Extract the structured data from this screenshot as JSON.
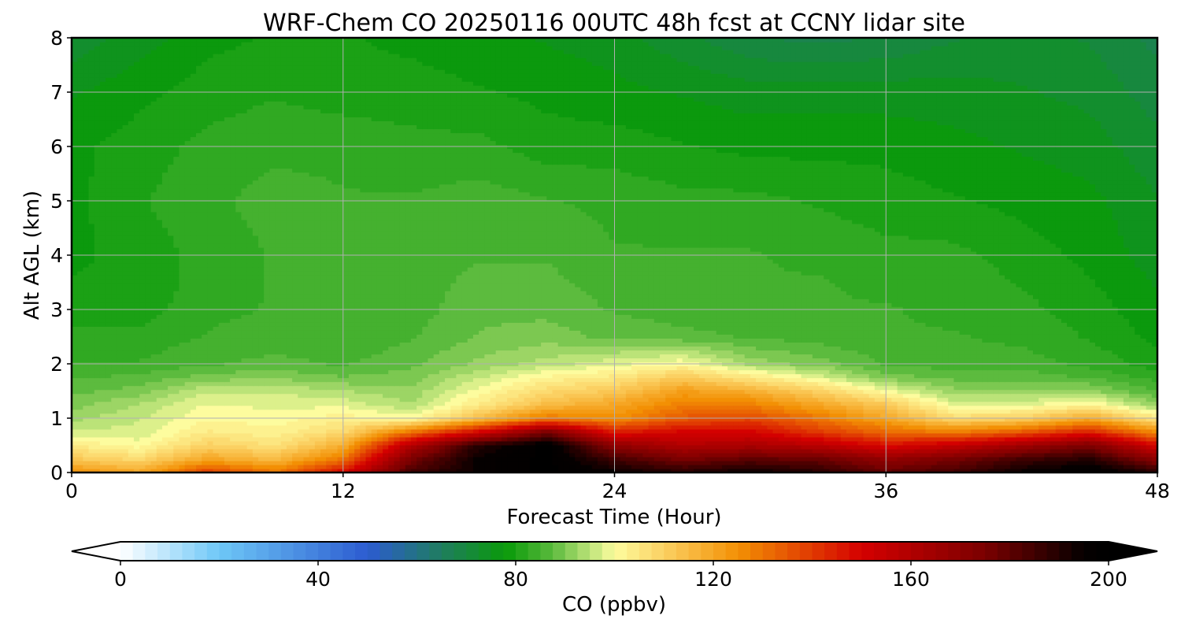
{
  "chart_data": {
    "type": "heatmap",
    "title": "WRF-Chem CO  20250116 00UTC 48h fcst at CCNY lidar site",
    "xlabel": "Forecast Time (Hour)",
    "ylabel": "Alt AGL (km)",
    "xlim": [
      0,
      48
    ],
    "ylim": [
      0,
      8
    ],
    "xticks": [
      "0",
      "12",
      "24",
      "36",
      "48"
    ],
    "yticks": [
      "0",
      "1",
      "2",
      "3",
      "4",
      "5",
      "6",
      "7",
      "8"
    ],
    "grid": true,
    "x": [
      0,
      3,
      6,
      9,
      12,
      15,
      18,
      21,
      24,
      27,
      30,
      33,
      36,
      39,
      42,
      45,
      48
    ],
    "y": [
      0,
      0.25,
      0.5,
      0.75,
      1,
      1.25,
      1.5,
      1.75,
      2,
      2.5,
      3,
      3.5,
      4,
      5,
      6,
      7,
      8
    ],
    "values": [
      [
        125,
        120,
        140,
        130,
        150,
        185,
        195,
        200,
        195,
        190,
        195,
        190,
        180,
        185,
        195,
        200,
        190
      ],
      [
        112,
        108,
        120,
        115,
        130,
        175,
        195,
        200,
        185,
        175,
        180,
        178,
        168,
        175,
        185,
        190,
        170
      ],
      [
        104,
        100,
        110,
        106,
        118,
        160,
        190,
        200,
        170,
        160,
        162,
        158,
        148,
        155,
        165,
        175,
        150
      ],
      [
        97,
        97,
        104,
        102,
        108,
        130,
        150,
        175,
        145,
        150,
        150,
        140,
        132,
        128,
        135,
        145,
        125
      ],
      [
        93,
        96,
        101,
        100,
        103,
        100,
        115,
        130,
        125,
        135,
        138,
        130,
        120,
        108,
        110,
        120,
        105
      ],
      [
        90,
        94,
        99,
        98,
        98,
        94,
        104,
        115,
        120,
        128,
        128,
        120,
        112,
        98,
        98,
        102,
        92
      ],
      [
        88,
        90,
        96,
        96,
        94,
        92,
        100,
        108,
        112,
        122,
        118,
        110,
        100,
        92,
        92,
        92,
        86
      ],
      [
        86,
        87,
        90,
        91,
        89,
        90,
        96,
        102,
        105,
        112,
        105,
        98,
        90,
        88,
        88,
        86,
        83
      ],
      [
        84,
        84,
        86,
        87,
        86,
        88,
        92,
        95,
        98,
        101,
        93,
        90,
        86,
        85,
        85,
        83,
        80
      ],
      [
        82,
        82,
        84,
        85,
        84,
        86,
        89,
        90,
        88,
        87,
        86,
        85,
        84,
        84,
        83,
        81,
        78
      ],
      [
        80,
        80,
        83,
        84,
        84,
        85,
        88,
        88,
        86,
        85,
        85,
        84,
        84,
        83,
        82,
        80,
        77
      ],
      [
        79,
        80,
        82,
        84,
        84,
        85,
        87,
        87,
        85,
        84,
        84,
        84,
        83,
        83,
        81,
        79,
        76
      ],
      [
        78,
        80,
        82,
        84,
        84,
        85,
        86,
        86,
        84,
        84,
        84,
        83,
        82,
        82,
        80,
        78,
        75
      ],
      [
        78,
        81,
        83,
        85,
        84,
        84,
        85,
        84,
        83,
        82,
        82,
        81,
        80,
        79,
        78,
        77,
        74
      ],
      [
        78,
        80,
        82,
        83,
        83,
        82,
        82,
        80,
        80,
        79,
        78,
        78,
        78,
        77,
        76,
        75,
        72
      ],
      [
        76,
        78,
        80,
        81,
        80,
        80,
        79,
        78,
        77,
        76,
        75,
        75,
        75,
        75,
        74,
        73,
        70
      ],
      [
        72,
        75,
        78,
        79,
        79,
        78,
        77,
        76,
        75,
        72,
        69,
        68,
        69,
        71,
        72,
        71,
        68
      ]
    ],
    "colorbar": {
      "label": "CO  (ppbv)",
      "min": 0,
      "max": 200,
      "ticks": [
        "0",
        "40",
        "80",
        "120",
        "160",
        "200"
      ],
      "extend": "both",
      "stops": [
        {
          "v": 0,
          "c": "#ffffff"
        },
        {
          "v": 20,
          "c": "#6ec7f7"
        },
        {
          "v": 50,
          "c": "#2c5bd0"
        },
        {
          "v": 65,
          "c": "#1f7d5e"
        },
        {
          "v": 78,
          "c": "#0a9a0a"
        },
        {
          "v": 87,
          "c": "#56b83a"
        },
        {
          "v": 96,
          "c": "#c8e880"
        },
        {
          "v": 100,
          "c": "#fdfc9e"
        },
        {
          "v": 110,
          "c": "#fbd062"
        },
        {
          "v": 125,
          "c": "#f39004"
        },
        {
          "v": 150,
          "c": "#d40000"
        },
        {
          "v": 175,
          "c": "#7a0000"
        },
        {
          "v": 195,
          "c": "#050000"
        },
        {
          "v": 200,
          "c": "#000000"
        }
      ]
    }
  }
}
